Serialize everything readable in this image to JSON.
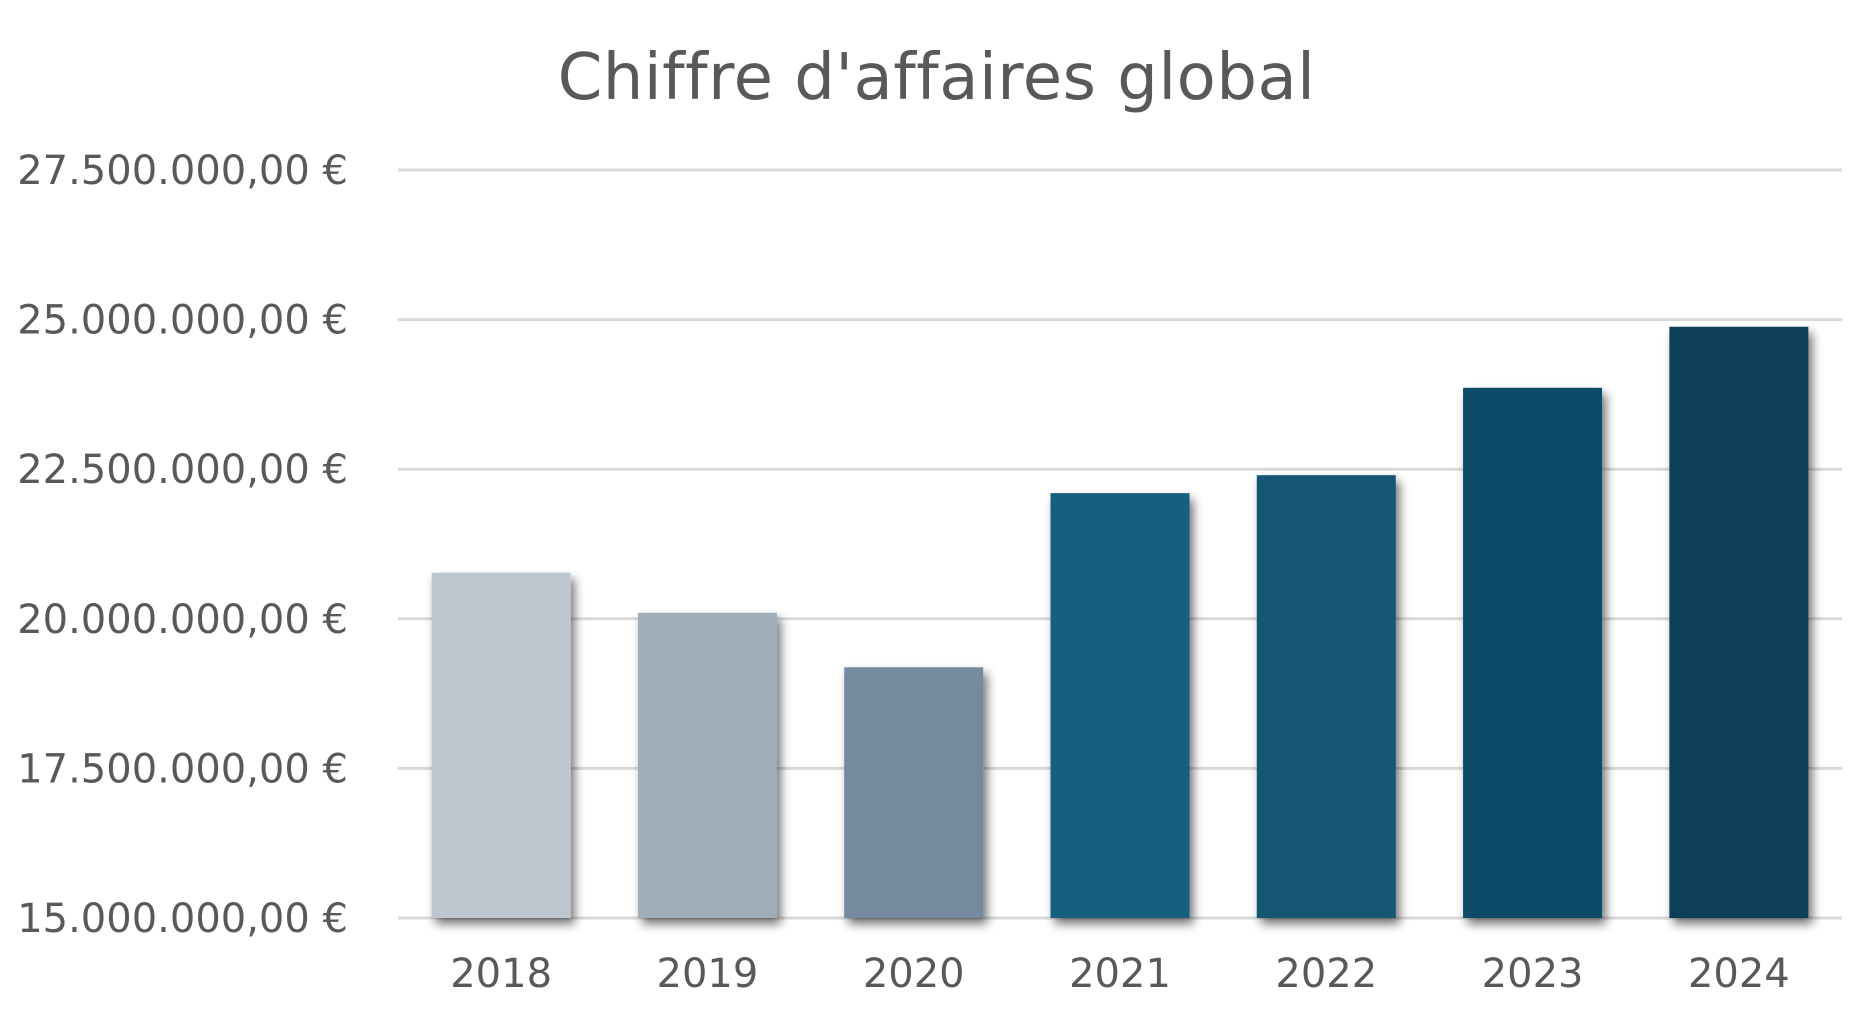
{
  "chart_data": {
    "type": "bar",
    "title": "Chiffre d'affaires global",
    "xlabel": "",
    "ylabel": "",
    "categories": [
      "2018",
      "2019",
      "2020",
      "2021",
      "2022",
      "2023",
      "2024"
    ],
    "values": [
      20770000,
      20100000,
      19190000,
      22100000,
      22400000,
      23860000,
      24880000
    ],
    "bar_colors": [
      "#bec7cf",
      "#a0aeba",
      "#758a9f",
      "#175e81",
      "#135775",
      "#104c69",
      "#0d3f58"
    ],
    "ylim": [
      15000000,
      27500000
    ],
    "y_ticks": [
      15000000,
      17500000,
      20000000,
      22500000,
      25000000,
      27500000
    ],
    "y_tick_labels": [
      "15.000.000,00 €",
      "17.500.000,00 €",
      "20.000.000,00 €",
      "22.500.000,00 €",
      "25.000.000,00 €",
      "27.500.000,00 €"
    ],
    "grid": true,
    "legend": "none"
  }
}
